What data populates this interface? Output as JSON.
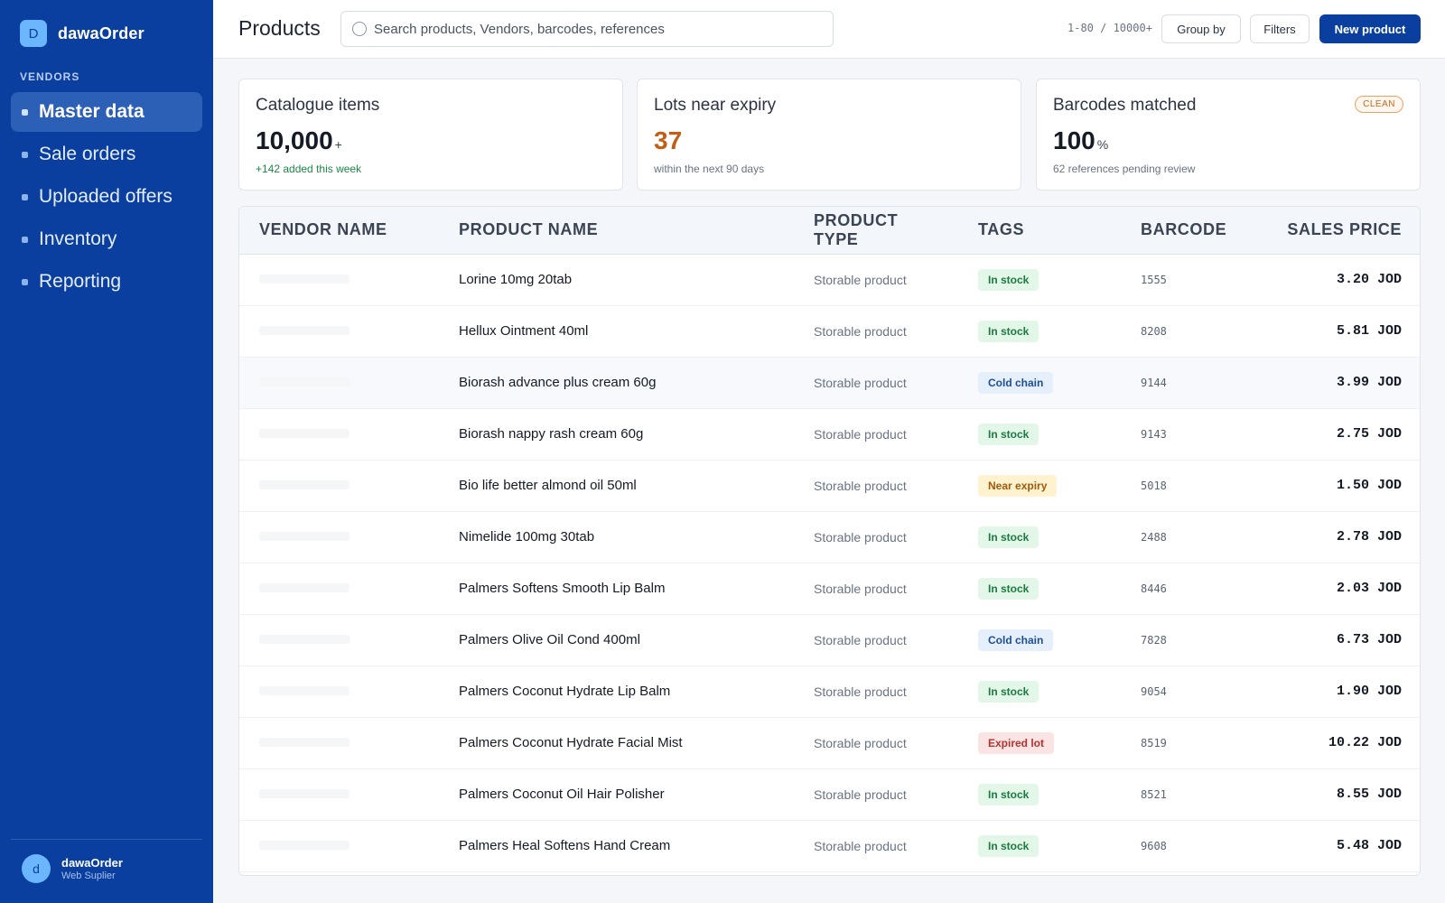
{
  "app": {
    "brand_letter": "D",
    "brand_name": "dawaOrder"
  },
  "sidebar": {
    "section_label": "VENDORS",
    "items": [
      {
        "label": "Master data",
        "active": true
      },
      {
        "label": "Sale orders"
      },
      {
        "label": "Uploaded offers"
      },
      {
        "label": "Inventory"
      },
      {
        "label": "Reporting"
      }
    ],
    "user": {
      "initial": "d",
      "name": "dawaOrder",
      "role": "Web Suplier"
    }
  },
  "header": {
    "title": "Products",
    "search_placeholder": "Search products, Vendors, barcodes, references",
    "pager": "1-80 / 10000+",
    "group_by": "Group by",
    "filters": "Filters",
    "new_product": "New product"
  },
  "stats": [
    {
      "title": "Catalogue items",
      "value": "10,000",
      "unit": "+",
      "note": "+142 added this week"
    },
    {
      "title": "Lots near expiry",
      "value": "37",
      "unit": "",
      "note": "within the next 90 days"
    },
    {
      "title": "Barcodes matched",
      "value": "100",
      "unit": "%",
      "note": "62 references pending review",
      "badge": "CLEAN"
    }
  ],
  "table": {
    "columns": [
      "VENDOR NAME",
      "PRODUCT NAME",
      "PRODUCT TYPE",
      "TAGS",
      "BARCODE",
      "SALES PRICE"
    ],
    "rows": [
      {
        "product": "Lorine 10mg 20tab",
        "type": "Storable product",
        "tag": "In stock",
        "barcode": "1555",
        "price": "3.20 JOD"
      },
      {
        "product": "Hellux Ointment 40ml",
        "type": "Storable product",
        "tag": "In stock",
        "barcode": "8208",
        "price": "5.81 JOD"
      },
      {
        "product": "Biorash advance plus cream 60g",
        "type": "Storable product",
        "tag": "Cold chain",
        "barcode": "9144",
        "price": "3.99 JOD"
      },
      {
        "product": "Biorash nappy rash cream 60g",
        "type": "Storable product",
        "tag": "In stock",
        "barcode": "9143",
        "price": "2.75 JOD"
      },
      {
        "product": "Bio life better almond oil 50ml",
        "type": "Storable product",
        "tag": "Near expiry",
        "barcode": "5018",
        "price": "1.50 JOD"
      },
      {
        "product": "Nimelide 100mg 30tab",
        "type": "Storable product",
        "tag": "In stock",
        "barcode": "2488",
        "price": "2.78 JOD"
      },
      {
        "product": "Palmers Softens Smooth Lip Balm",
        "type": "Storable product",
        "tag": "In stock",
        "barcode": "8446",
        "price": "2.03 JOD"
      },
      {
        "product": "Palmers Olive Oil Cond 400ml",
        "type": "Storable product",
        "tag": "Cold chain",
        "barcode": "7828",
        "price": "6.73 JOD"
      },
      {
        "product": "Palmers Coconut Hydrate Lip Balm",
        "type": "Storable product",
        "tag": "In stock",
        "barcode": "9054",
        "price": "1.90 JOD"
      },
      {
        "product": "Palmers Coconut Hydrate Facial Mist",
        "type": "Storable product",
        "tag": "Expired lot",
        "barcode": "8519",
        "price": "10.22 JOD"
      },
      {
        "product": "Palmers Coconut Oil Hair Polisher",
        "type": "Storable product",
        "tag": "In stock",
        "barcode": "8521",
        "price": "8.55 JOD"
      },
      {
        "product": "Palmers Heal Softens Hand Cream",
        "type": "Storable product",
        "tag": "In stock",
        "barcode": "9608",
        "price": "5.48 JOD"
      }
    ]
  },
  "colors": {
    "sidebar": "#0a3fa0",
    "accent": "#6cb6ff",
    "warning": "#c05f17",
    "success": "#198a45"
  }
}
